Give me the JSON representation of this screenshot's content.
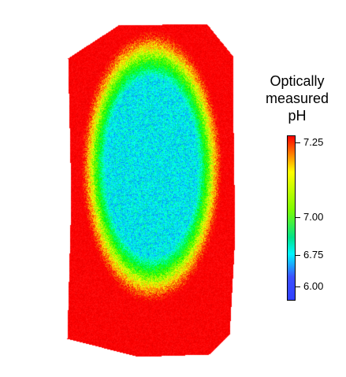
{
  "colorbar": {
    "title_lines": [
      "Optically",
      "measured",
      "pH"
    ],
    "ticks": [
      "7.25",
      "7.00",
      "6.75",
      "6.00"
    ],
    "colors": [
      "#ff0000",
      "#ff8c00",
      "#ffff00",
      "#7cfc00",
      "#00e28a",
      "#00f5ff",
      "#3c50ff",
      "#3040ff"
    ]
  },
  "map": {
    "edge_color": "#ff1a1a",
    "core_color": "#2a4fff",
    "mid_color": "#6ae52a",
    "transition_color": "#45c8ff"
  }
}
